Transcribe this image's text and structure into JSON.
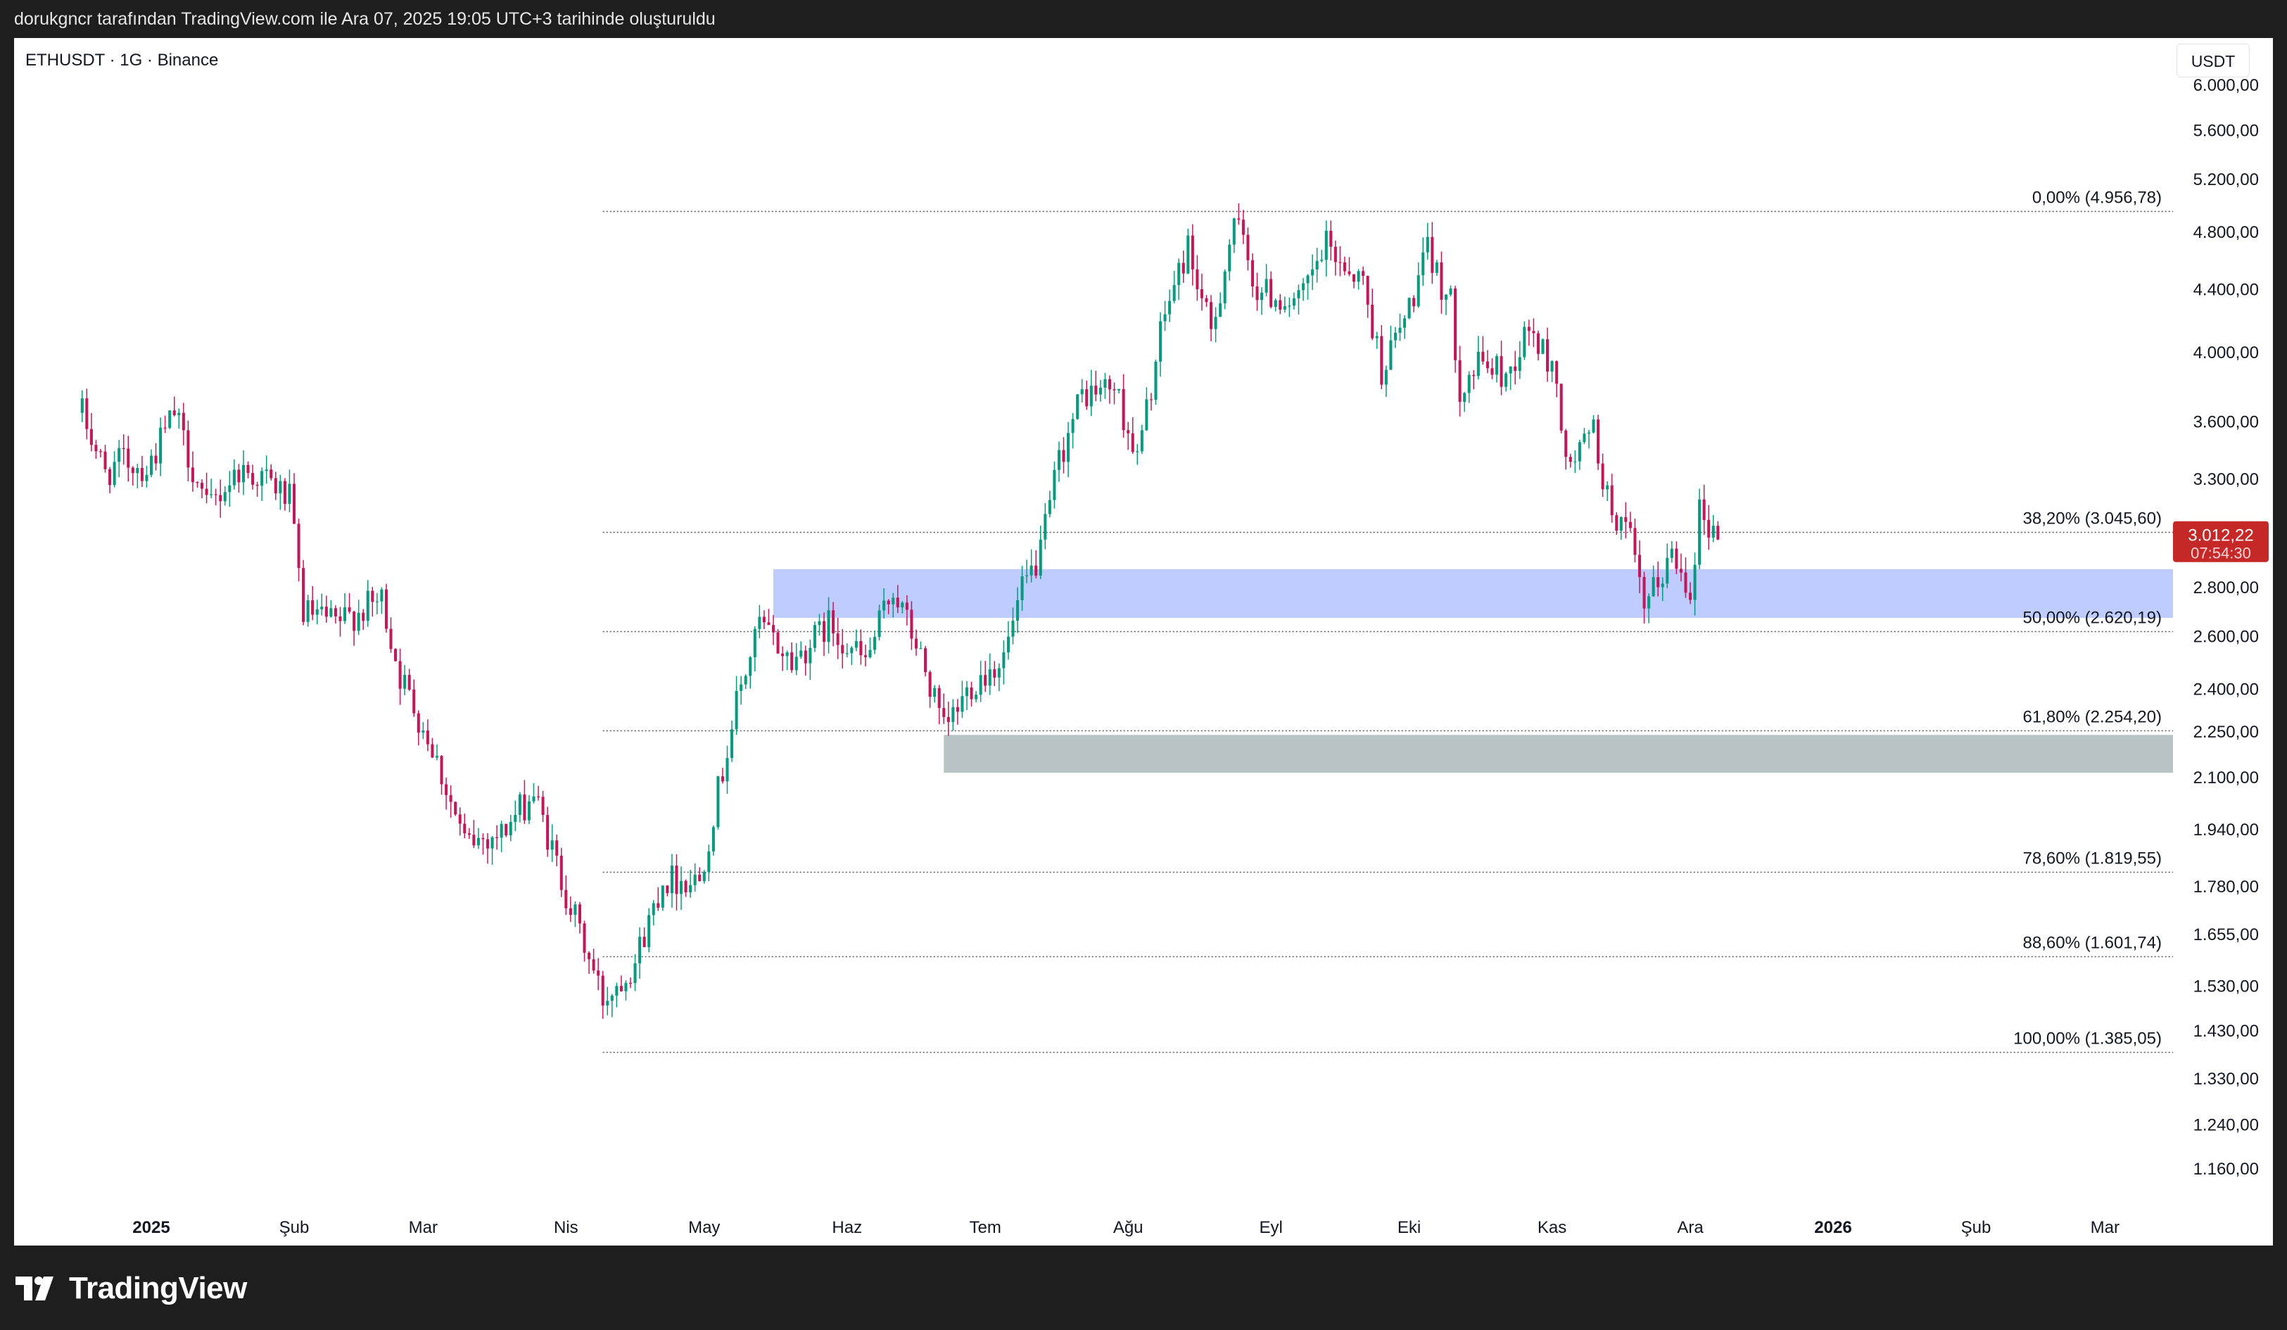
{
  "header": {
    "caption": "dorukgncr tarafından TradingView.com ile Ara 07, 2025 19:05 UTC+3 tarihinde oluşturuldu"
  },
  "chart_header": {
    "symbol": "ETHUSDT · 1G · Binance",
    "currency": "USDT"
  },
  "brand": {
    "name": "TradingView",
    "icon": "tradingview-logo-icon"
  },
  "colors": {
    "up": "#26a69a",
    "down": "#ef5350",
    "up_body": "#089981",
    "down_body": "#c2185b",
    "price_tag": "#c62828",
    "zone_blue": "#b9c8ff",
    "zone_gray": "#b2bec0"
  },
  "price_tag": {
    "price": "3.012,22",
    "countdown": "07:54:30",
    "value": 3012.22
  },
  "chart_data": {
    "type": "candlestick",
    "symbol": "ETHUSDT",
    "interval": "1G",
    "exchange": "Binance",
    "y_scale": "log",
    "y_ticks": [
      {
        "value": 6000,
        "label": "6.000,00"
      },
      {
        "value": 5600,
        "label": "5.600,00"
      },
      {
        "value": 5200,
        "label": "5.200,00"
      },
      {
        "value": 4800,
        "label": "4.800,00"
      },
      {
        "value": 4400,
        "label": "4.400,00"
      },
      {
        "value": 4000,
        "label": "4.000,00"
      },
      {
        "value": 3600,
        "label": "3.600,00"
      },
      {
        "value": 3300,
        "label": "3.300,00"
      },
      {
        "value": 2800,
        "label": "2.800,00"
      },
      {
        "value": 2600,
        "label": "2.600,00"
      },
      {
        "value": 2400,
        "label": "2.400,00"
      },
      {
        "value": 2250,
        "label": "2.250,00"
      },
      {
        "value": 2100,
        "label": "2.100,00"
      },
      {
        "value": 1940,
        "label": "1.940,00"
      },
      {
        "value": 1780,
        "label": "1.780,00"
      },
      {
        "value": 1655,
        "label": "1.655,00"
      },
      {
        "value": 1530,
        "label": "1.530,00"
      },
      {
        "value": 1430,
        "label": "1.430,00"
      },
      {
        "value": 1330,
        "label": "1.330,00"
      },
      {
        "value": 1240,
        "label": "1.240,00"
      },
      {
        "value": 1160,
        "label": "1.160,00"
      }
    ],
    "x_ticks": [
      {
        "label": "2025",
        "date": "2025-01-01",
        "bold": true
      },
      {
        "label": "Şub",
        "date": "2025-02-01"
      },
      {
        "label": "Mar",
        "date": "2025-03-01"
      },
      {
        "label": "Nis",
        "date": "2025-04-01"
      },
      {
        "label": "May",
        "date": "2025-05-01"
      },
      {
        "label": "Haz",
        "date": "2025-06-01"
      },
      {
        "label": "Tem",
        "date": "2025-07-01"
      },
      {
        "label": "Ağu",
        "date": "2025-08-01"
      },
      {
        "label": "Eyl",
        "date": "2025-09-01"
      },
      {
        "label": "Eki",
        "date": "2025-10-01"
      },
      {
        "label": "Kas",
        "date": "2025-11-01"
      },
      {
        "label": "Ara",
        "date": "2025-12-01"
      },
      {
        "label": "2026",
        "date": "2026-01-01",
        "bold": true
      },
      {
        "label": "Şub",
        "date": "2026-02-01"
      },
      {
        "label": "Mar",
        "date": "2026-03-01"
      }
    ],
    "fibonacci": [
      {
        "label": "0,00% (4.956,78)",
        "value": 4956.78
      },
      {
        "label": "38,20% (3.045,60)",
        "value": 3045.6
      },
      {
        "label": "50,00% (2.620,19)",
        "value": 2620.19
      },
      {
        "label": "61,80% (2.254,20)",
        "value": 2254.2
      },
      {
        "label": "78,60% (1.819,55)",
        "value": 1819.55
      },
      {
        "label": "88,60% (1.601,74)",
        "value": 1601.74
      },
      {
        "label": "100,00% (1.385,05)",
        "value": 1385.05
      }
    ],
    "fib_start_date": "2025-04-09",
    "zones": [
      {
        "name": "blue-zone",
        "start_date": "2025-05-16",
        "high": 2880,
        "low": 2675
      },
      {
        "name": "gray-zone",
        "start_date": "2025-06-22",
        "high": 2240,
        "low": 2115
      }
    ],
    "price_path": [
      {
        "date": "2024-12-17",
        "close": 3650
      },
      {
        "date": "2024-12-22",
        "close": 3330
      },
      {
        "date": "2024-12-26",
        "close": 3400
      },
      {
        "date": "2024-12-31",
        "close": 3350
      },
      {
        "date": "2025-01-06",
        "close": 3650
      },
      {
        "date": "2025-01-13",
        "close": 3150
      },
      {
        "date": "2025-01-20",
        "close": 3350
      },
      {
        "date": "2025-01-26",
        "close": 3300
      },
      {
        "date": "2025-01-31",
        "close": 3200
      },
      {
        "date": "2025-02-03",
        "close": 2700
      },
      {
        "date": "2025-02-10",
        "close": 2650
      },
      {
        "date": "2025-02-20",
        "close": 2750
      },
      {
        "date": "2025-02-24",
        "close": 2450
      },
      {
        "date": "2025-03-03",
        "close": 2200
      },
      {
        "date": "2025-03-10",
        "close": 1900
      },
      {
        "date": "2025-03-18",
        "close": 1930
      },
      {
        "date": "2025-03-25",
        "close": 2050
      },
      {
        "date": "2025-03-31",
        "close": 1800
      },
      {
        "date": "2025-04-09",
        "close": 1500
      },
      {
        "date": "2025-04-16",
        "close": 1590
      },
      {
        "date": "2025-04-22",
        "close": 1800
      },
      {
        "date": "2025-04-30",
        "close": 1800
      },
      {
        "date": "2025-05-08",
        "close": 2350
      },
      {
        "date": "2025-05-13",
        "close": 2650
      },
      {
        "date": "2025-05-20",
        "close": 2500
      },
      {
        "date": "2025-05-28",
        "close": 2650
      },
      {
        "date": "2025-06-05",
        "close": 2500
      },
      {
        "date": "2025-06-11",
        "close": 2800
      },
      {
        "date": "2025-06-17",
        "close": 2520
      },
      {
        "date": "2025-06-22",
        "close": 2250
      },
      {
        "date": "2025-06-28",
        "close": 2420
      },
      {
        "date": "2025-07-05",
        "close": 2520
      },
      {
        "date": "2025-07-09",
        "close": 2780
      },
      {
        "date": "2025-07-13",
        "close": 2950
      },
      {
        "date": "2025-07-17",
        "close": 3400
      },
      {
        "date": "2025-07-22",
        "close": 3750
      },
      {
        "date": "2025-07-29",
        "close": 3800
      },
      {
        "date": "2025-08-03",
        "close": 3400
      },
      {
        "date": "2025-08-09",
        "close": 4250
      },
      {
        "date": "2025-08-14",
        "close": 4700
      },
      {
        "date": "2025-08-19",
        "close": 4100
      },
      {
        "date": "2025-08-24",
        "close": 4900
      },
      {
        "date": "2025-08-29",
        "close": 4400
      },
      {
        "date": "2025-09-07",
        "close": 4300
      },
      {
        "date": "2025-09-13",
        "close": 4700
      },
      {
        "date": "2025-09-21",
        "close": 4450
      },
      {
        "date": "2025-09-25",
        "close": 3900
      },
      {
        "date": "2025-09-30",
        "close": 4200
      },
      {
        "date": "2025-10-05",
        "close": 4650
      },
      {
        "date": "2025-10-10",
        "close": 4300
      },
      {
        "date": "2025-10-12",
        "close": 3800
      },
      {
        "date": "2025-10-17",
        "close": 3950
      },
      {
        "date": "2025-10-22",
        "close": 3850
      },
      {
        "date": "2025-10-27",
        "close": 4150
      },
      {
        "date": "2025-11-02",
        "close": 3850
      },
      {
        "date": "2025-11-04",
        "close": 3350
      },
      {
        "date": "2025-11-10",
        "close": 3550
      },
      {
        "date": "2025-11-13",
        "close": 3200
      },
      {
        "date": "2025-11-18",
        "close": 3000
      },
      {
        "date": "2025-11-21",
        "close": 2700
      },
      {
        "date": "2025-11-27",
        "close": 2950
      },
      {
        "date": "2025-12-01",
        "close": 2800
      },
      {
        "date": "2025-12-03",
        "close": 3150
      },
      {
        "date": "2025-12-07",
        "close": 3012
      }
    ]
  }
}
